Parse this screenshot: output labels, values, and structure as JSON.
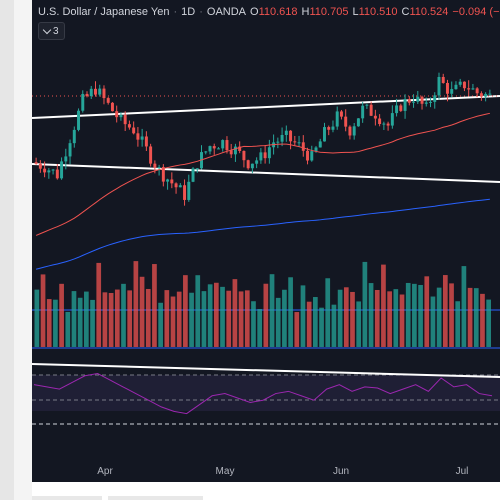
{
  "symbol": {
    "name": "U.S. Dollar / Japanese Yen",
    "interval": "1D",
    "exchange": "OANDA"
  },
  "ohlc": {
    "o_label": "O",
    "o_value": "110.618",
    "h_label": "H",
    "h_value": "110.705",
    "l_label": "L",
    "l_value": "110.510",
    "c_label": "C",
    "c_value": "110.524",
    "change": "−0.094 (−"
  },
  "indicators_toggle": {
    "count": "3"
  },
  "x_axis": {
    "labels": [
      "Apr",
      "May",
      "Jun",
      "Jul"
    ]
  },
  "colors": {
    "background": "#131722",
    "up_candle": "#26a69a",
    "down_candle": "#ef5350",
    "ma_fast": "#ef5350",
    "ma_slow": "#2962ff",
    "rsi_line": "#9c27b0",
    "trendline": "#ffffff"
  },
  "chart_data": {
    "type": "candlestick",
    "x_labels": [
      "Apr",
      "May",
      "Jun",
      "Jul"
    ],
    "close_path": [
      108.9,
      108.8,
      108.6,
      109.5,
      110.4,
      110.7,
      110.3,
      109.9,
      109.7,
      109.2,
      108.7,
      108.4,
      108.1,
      108.9,
      109.3,
      109.4,
      109.2,
      108.9,
      109.0,
      109.4,
      109.5,
      109.3,
      109.0,
      109.6,
      110.0,
      109.7,
      110.2,
      110.1,
      109.8,
      110.3,
      110.5,
      110.2,
      110.9,
      110.6,
      110.8,
      110.6,
      110.52
    ],
    "volume_relative": [
      0.85,
      0.9,
      0.6,
      0.7,
      0.75,
      0.5,
      0.8,
      0.65,
      0.7,
      0.55,
      0.9,
      0.6,
      0.75,
      0.85,
      0.7,
      0.6,
      0.95,
      0.8,
      0.7,
      0.9,
      0.65,
      0.75,
      0.6,
      0.8,
      0.85,
      0.7,
      0.95,
      0.6,
      0.75,
      0.9,
      0.7,
      0.65,
      1.0,
      0.75,
      0.8,
      0.6,
      0.55
    ],
    "rsi_values": [
      60,
      58,
      56,
      62,
      68,
      70,
      64,
      58,
      52,
      46,
      40,
      36,
      34,
      42,
      50,
      52,
      48,
      44,
      46,
      52,
      54,
      50,
      46,
      56,
      60,
      54,
      58,
      57,
      52,
      56,
      60,
      54,
      66,
      58,
      60,
      52,
      50
    ]
  }
}
